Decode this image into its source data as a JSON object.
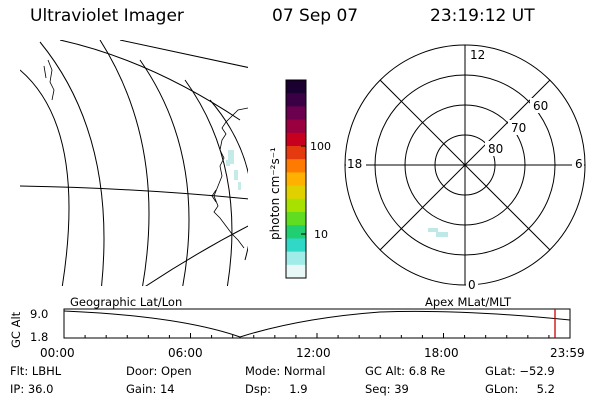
{
  "header": {
    "instrument": "Ultraviolet Imager",
    "date": "07 Sep 07",
    "time": "23:19:12 UT"
  },
  "colorbar": {
    "unit_label": "photon cm⁻²s⁻¹",
    "ticks": [
      "100",
      "10"
    ],
    "colors": [
      "#1a0030",
      "#3a0045",
      "#6a004e",
      "#9a0040",
      "#c80020",
      "#e33a10",
      "#ff7a00",
      "#ffb000",
      "#e0d000",
      "#a8e000",
      "#60dd20",
      "#20d070",
      "#30d8c8",
      "#a0ece8",
      "#e8f8f6"
    ]
  },
  "polar_plot": {
    "mlt_labels": {
      "top": "12",
      "left": "18",
      "right": "6",
      "bottom": "0"
    },
    "lat_labels": [
      "60",
      "70",
      "80"
    ]
  },
  "timeline": {
    "ylabel": "GC Alt",
    "left_label": "Geographic Lat/Lon",
    "right_label": "Apex MLat/MLT",
    "y_ticks": [
      "9.0",
      "1.8"
    ],
    "x_ticks": [
      "00:00",
      "06:00",
      "12:00",
      "18:00",
      "23:59"
    ],
    "marker_color": "#cc0000"
  },
  "status": {
    "flt": "Flt: LBHL",
    "ip": "IP: 36.0",
    "door": "Door: Open",
    "gain": "Gain: 14",
    "mode": "Mode: Normal",
    "dsp": "Dsp:     1.9",
    "gc_alt": "GC Alt: 6.8 Re",
    "seq": "Seq: 39",
    "glat": "GLat: −52.9",
    "glon": "GLon:     5.2"
  }
}
